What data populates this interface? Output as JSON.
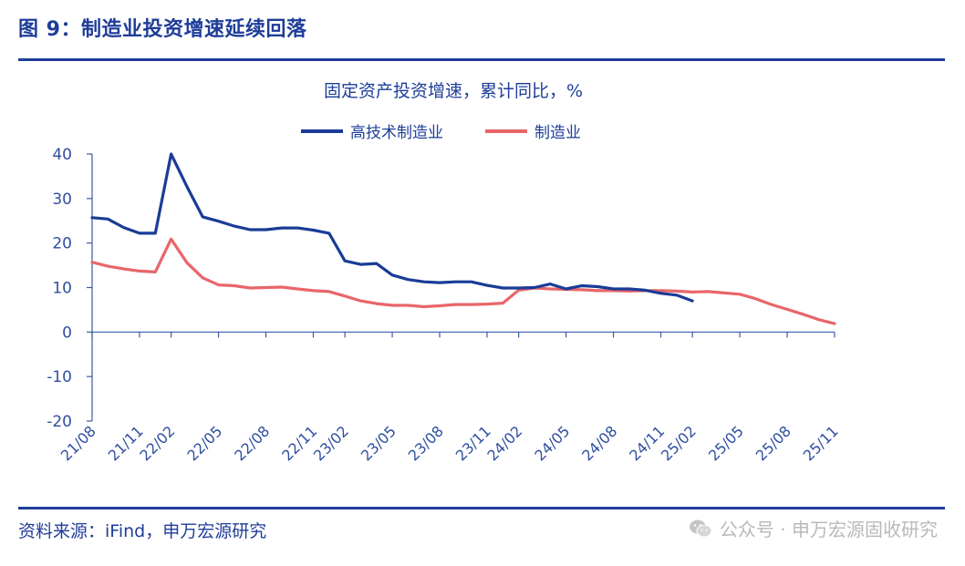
{
  "figure": {
    "label": "图 9：制造业投资增速延续回落",
    "source": "资料来源：iFind，申万宏源研究",
    "watermark": "公众号 · 申万宏源固收研究"
  },
  "colors": {
    "brand": "#1f3d99",
    "series_high_tech": "#1a3c96",
    "series_manufacturing": "#e8666a",
    "axis": "#3a5aa8",
    "tick_text": "#2f4fa0"
  },
  "icons": {
    "watermark": "wechat-icon"
  },
  "chart_data": {
    "type": "line",
    "title": "固定资产投资增速，累计同比，%",
    "xlabel": "",
    "ylabel": "",
    "ylim": [
      -20,
      40
    ],
    "yticks": [
      -20,
      -10,
      0,
      10,
      20,
      30,
      40
    ],
    "grid": false,
    "legend_position": "top-center",
    "x_tick_labels": [
      "21/08",
      "21/11",
      "22/02",
      "22/05",
      "22/08",
      "22/11",
      "23/02",
      "23/05",
      "23/08",
      "23/11",
      "24/02",
      "24/05",
      "24/08",
      "24/11",
      "25/02",
      "25/05",
      "25/08",
      "25/11"
    ],
    "x": [
      "21/08",
      "21/09",
      "21/10",
      "21/11",
      "21/12",
      "22/02",
      "22/03",
      "22/04",
      "22/05",
      "22/06",
      "22/07",
      "22/08",
      "22/09",
      "22/10",
      "22/11",
      "22/12",
      "23/02",
      "23/03",
      "23/04",
      "23/05",
      "23/06",
      "23/07",
      "23/08",
      "23/09",
      "23/10",
      "23/11",
      "23/12",
      "24/02",
      "24/03",
      "24/04",
      "24/05",
      "24/06",
      "24/07",
      "24/08",
      "24/09",
      "24/10",
      "24/11",
      "24/12",
      "25/02",
      "25/03",
      "25/04",
      "25/05",
      "25/06",
      "25/07",
      "25/08",
      "25/09",
      "25/10",
      "25/11"
    ],
    "series": [
      {
        "name": "高技术制造业",
        "color": "#1a3c96",
        "values": [
          25.7,
          25.4,
          23.5,
          22.2,
          22.2,
          42.7,
          32.7,
          25.9,
          24.9,
          23.8,
          23.0,
          23.0,
          23.4,
          23.4,
          22.9,
          22.2,
          16.0,
          15.2,
          15.4,
          12.8,
          11.8,
          11.3,
          11.1,
          11.3,
          11.3,
          10.5,
          9.9,
          9.9,
          10.0,
          10.8,
          9.7,
          10.4,
          10.2,
          9.7,
          9.7,
          9.4,
          8.7,
          8.3,
          7.0,
          null,
          null,
          null,
          null,
          null,
          null,
          null,
          null,
          null
        ]
      },
      {
        "name": "制造业",
        "color": "#e8666a",
        "values": [
          15.7,
          14.8,
          14.2,
          13.7,
          13.5,
          20.9,
          15.6,
          12.2,
          10.6,
          10.4,
          9.9,
          10.0,
          10.1,
          9.7,
          9.3,
          9.1,
          8.1,
          7.0,
          6.4,
          6.0,
          6.0,
          5.7,
          5.9,
          6.2,
          6.2,
          6.3,
          6.5,
          9.4,
          9.9,
          9.7,
          9.6,
          9.5,
          9.3,
          9.3,
          9.2,
          9.3,
          9.3,
          9.2,
          9.0,
          9.1,
          8.8,
          8.5,
          7.5,
          6.2,
          5.1,
          4.0,
          2.8,
          1.9
        ]
      }
    ]
  }
}
